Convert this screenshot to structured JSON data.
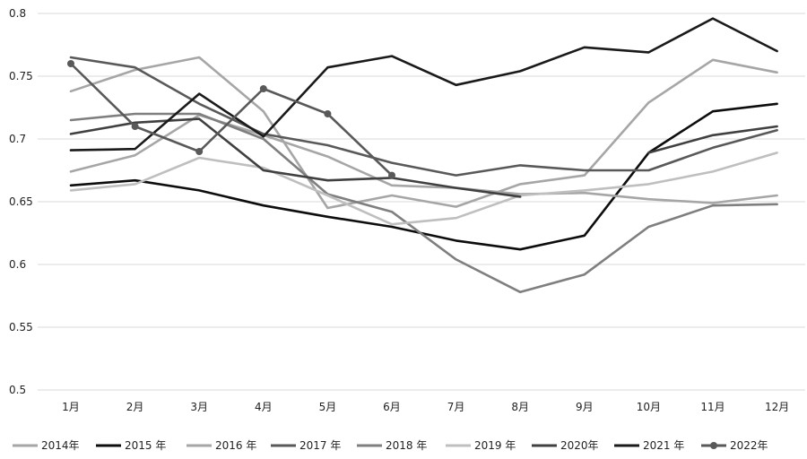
{
  "chart_data": {
    "type": "line",
    "title": "",
    "xlabel": "",
    "ylabel": "",
    "categories": [
      "1月",
      "2月",
      "3月",
      "4月",
      "5月",
      "6月",
      "7月",
      "8月",
      "9月",
      "10月",
      "11月",
      "12月"
    ],
    "ylim": [
      0.5,
      0.8
    ],
    "yticks": [
      0.5,
      0.55,
      0.6,
      0.65,
      0.7,
      0.75,
      0.8
    ],
    "ytick_labels": [
      "0.5",
      "0.55",
      "0.6",
      "0.65",
      "0.7",
      "0.75",
      "0.8"
    ],
    "grid": true,
    "legend_position": "bottom",
    "series": [
      {
        "name": "2014年",
        "color": "#a6a6a6",
        "markers": false,
        "values": [
          0.738,
          0.755,
          0.765,
          0.722,
          0.645,
          0.655,
          0.646,
          0.664,
          0.671,
          0.729,
          0.763,
          0.753
        ]
      },
      {
        "name": "2015 年",
        "color": "#0d0d0d",
        "markers": false,
        "values": [
          0.663,
          0.667,
          0.659,
          0.647,
          0.638,
          0.63,
          0.619,
          0.612,
          0.623,
          0.689,
          0.722,
          0.728
        ]
      },
      {
        "name": "2016 年",
        "color": "#a6a6a6",
        "markers": false,
        "values": [
          0.674,
          0.687,
          0.719,
          0.703,
          0.686,
          0.663,
          0.661,
          0.656,
          0.657,
          0.652,
          0.649,
          0.655
        ]
      },
      {
        "name": "2017 年",
        "color": "#595959",
        "markers": false,
        "values": [
          0.765,
          0.757,
          0.728,
          0.704,
          0.695,
          0.681,
          0.671,
          0.679,
          0.675,
          0.675,
          0.693,
          0.707
        ]
      },
      {
        "name": "2018 年",
        "color": "#7f7f7f",
        "markers": false,
        "values": [
          0.715,
          0.72,
          0.72,
          0.7,
          0.656,
          0.642,
          0.604,
          0.578,
          0.592,
          0.63,
          0.647,
          0.648
        ]
      },
      {
        "name": "2019 年",
        "color": "#bfbfbf",
        "markers": false,
        "values": [
          0.659,
          0.664,
          0.685,
          0.677,
          0.655,
          0.632,
          0.637,
          0.655,
          0.659,
          0.664,
          0.674,
          0.689
        ]
      },
      {
        "name": "2020年",
        "color": "#404040",
        "markers": false,
        "values": [
          0.704,
          0.713,
          0.716,
          0.675,
          0.667,
          0.669,
          0.661,
          0.654,
          null,
          0.689,
          0.703,
          0.71
        ]
      },
      {
        "name": "2021 年",
        "color": "#1a1a1a",
        "markers": false,
        "values": [
          0.691,
          0.692,
          0.736,
          0.702,
          0.757,
          0.766,
          0.743,
          0.754,
          0.773,
          0.769,
          0.796,
          0.77
        ]
      },
      {
        "name": "2022年",
        "color": "#595959",
        "markers": true,
        "values": [
          0.76,
          0.71,
          0.69,
          0.74,
          0.72,
          0.671,
          null,
          null,
          null,
          null,
          null,
          null
        ]
      }
    ]
  }
}
